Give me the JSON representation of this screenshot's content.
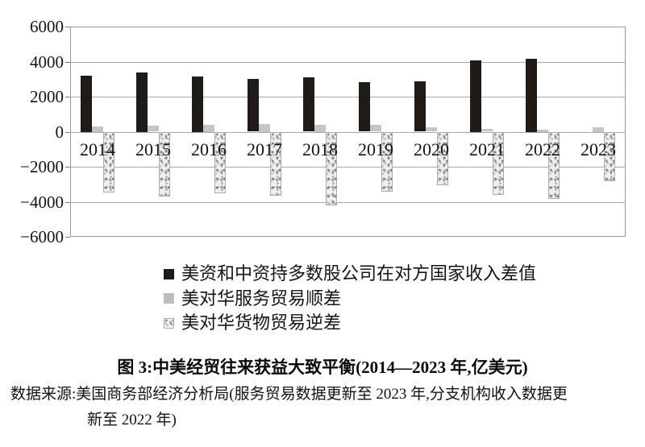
{
  "chart_data": {
    "type": "bar",
    "title": "图 3:中美经贸往来获益大致平衡(2014—2023 年,亿美元)",
    "categories": [
      "2014",
      "2015",
      "2016",
      "2017",
      "2018",
      "2019",
      "2020",
      "2021",
      "2022",
      "2023"
    ],
    "series": [
      {
        "name": "美资和中资持多数股公司在对方国家收入差值",
        "swatch": "black",
        "values": [
          3200,
          3380,
          3150,
          3000,
          3100,
          2810,
          2870,
          4070,
          4170,
          null
        ]
      },
      {
        "name": "美对华服务贸易顺差",
        "swatch": "gray",
        "values": [
          310,
          340,
          400,
          440,
          410,
          380,
          250,
          150,
          130,
          260
        ]
      },
      {
        "name": "美对华货物贸易逆差",
        "swatch": "tex",
        "values": [
          -3430,
          -3690,
          -3490,
          -3650,
          -4180,
          -3400,
          -3050,
          -3570,
          -3800,
          -2800
        ]
      }
    ],
    "ylim": [
      -6000,
      6000
    ],
    "ytick_step": 2000,
    "ytick_labels": [
      "6000",
      "4000",
      "2000",
      "0",
      "−2000",
      "−4000",
      "−6000"
    ],
    "grid": true,
    "legend_position": "below-left"
  },
  "caption": {
    "text": "图 3:中美经贸往来获益大致平衡(2014—2023 年,亿美元)"
  },
  "source": {
    "line1": "数据来源:美国商务部经济分析局(服务贸易数据更新至 2023 年,分支机构收入数据更",
    "line2": "新至 2022 年)"
  },
  "colors": {
    "black_bar": "#211b17",
    "gray_bar": "#c5c5c5",
    "texture_base": "#efefef",
    "gridline": "#a8a8a8",
    "text": "#171310"
  }
}
